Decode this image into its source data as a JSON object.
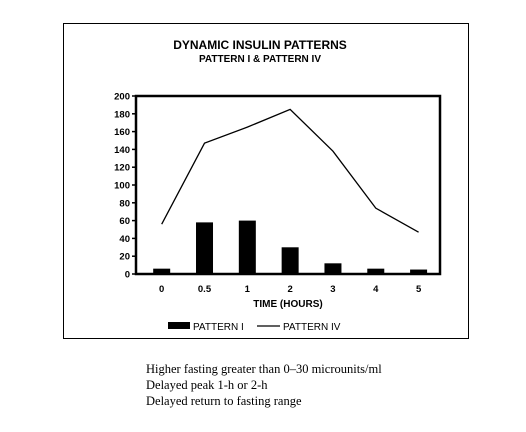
{
  "chart_data": {
    "type": "bar",
    "title": "DYNAMIC INSULIN PATTERNS",
    "subtitle": "PATTERN I & PATTERN IV",
    "xlabel": "TIME (HOURS)",
    "ylabel": "",
    "categories": [
      "0",
      "0.5",
      "1",
      "2",
      "3",
      "4",
      "5"
    ],
    "ylim": [
      0,
      200
    ],
    "yticks": [
      "0",
      "20",
      "40",
      "60",
      "80",
      "100",
      "120",
      "140",
      "160",
      "180",
      "200"
    ],
    "grid": false,
    "legend_position": "bottom",
    "series": [
      {
        "name": "PATTERN I",
        "type": "bar",
        "color": "#000000",
        "values": [
          6,
          58,
          60,
          30,
          12,
          6,
          5
        ]
      },
      {
        "name": "PATTERN IV",
        "type": "line",
        "color": "#000000",
        "values": [
          56,
          147,
          165,
          185,
          138,
          74,
          47
        ]
      }
    ]
  },
  "caption": {
    "lines": [
      "Higher fasting greater than 0–30 microunits/ml",
      "Delayed peak 1-h or 2-h",
      "Delayed return to fasting range"
    ]
  }
}
